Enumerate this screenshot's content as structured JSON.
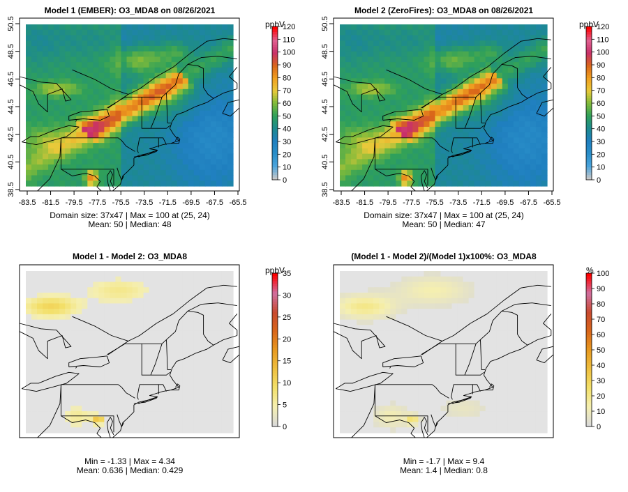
{
  "panels": [
    {
      "title": "Model 1 (EMBER): O3_MDA8 on 08/26/2021",
      "stats_line1": "Domain size: 37x47 | Max = 100 at (25, 24)",
      "stats_line2": "Mean: 50 | Median: 48",
      "unit": "ppbV",
      "colorbar_ticks": [
        "0",
        "10",
        "20",
        "30",
        "40",
        "50",
        "60",
        "70",
        "80",
        "90",
        "100",
        "110",
        "120"
      ],
      "x_ticks": [
        "-83.5",
        "-81.5",
        "-79.5",
        "-77.5",
        "-75.5",
        "-73.5",
        "-71.5",
        "-69.5",
        "-67.5",
        "-65.5"
      ],
      "y_ticks": [
        "38.5",
        "40.5",
        "42.5",
        "44.5",
        "46.5",
        "48.5",
        "50.5"
      ]
    },
    {
      "title": "Model 2 (ZeroFires): O3_MDA8 on 08/26/2021",
      "stats_line1": "Domain size: 37x47 | Max = 100 at (25, 24)",
      "stats_line2": "Mean: 50 | Median: 47",
      "unit": "ppbV",
      "colorbar_ticks": [
        "0",
        "10",
        "20",
        "30",
        "40",
        "50",
        "60",
        "70",
        "80",
        "90",
        "100",
        "110",
        "120"
      ],
      "x_ticks": [
        "-83.5",
        "-81.5",
        "-79.5",
        "-77.5",
        "-75.5",
        "-73.5",
        "-71.5",
        "-69.5",
        "-67.5",
        "-65.5"
      ],
      "y_ticks": [
        "38.5",
        "40.5",
        "42.5",
        "44.5",
        "46.5",
        "48.5",
        "50.5"
      ]
    },
    {
      "title": "Model 1 - Model 2: O3_MDA8",
      "stats_line1": "Min = -1.33 | Max = 4.34",
      "stats_line2": "Mean: 0.636 | Median: 0.429",
      "unit": "ppbV",
      "colorbar_ticks": [
        "0",
        "5",
        "10",
        "15",
        "20",
        "25",
        "30",
        "35"
      ]
    },
    {
      "title": "(Model 1 - Model 2)/(Model 1)x100%: O3_MDA8",
      "stats_line1": "Min = -1.7 | Max = 9.4",
      "stats_line2": "Mean: 1.4 | Median: 0.8",
      "unit": "%",
      "colorbar_ticks": [
        "0",
        "10",
        "20",
        "30",
        "40",
        "50",
        "60",
        "70",
        "80",
        "90",
        "100"
      ]
    }
  ],
  "colors": {
    "concentration_scale": [
      "#c8c8c8",
      "#4aa3dc",
      "#2a8fc9",
      "#1f7fbf",
      "#1d8a8f",
      "#2fa05a",
      "#7fba3a",
      "#e9c93a",
      "#f0a020",
      "#d9661a",
      "#c8306a",
      "#e06090",
      "#ff0000"
    ],
    "difference_scale": [
      "#d9d9d9",
      "#f5efb0",
      "#f3e06a",
      "#efc040",
      "#e89a20",
      "#d9661a",
      "#c84a30",
      "#d070a0",
      "#ff0000"
    ],
    "map_lines": "#000000",
    "axes": "#000000"
  }
}
